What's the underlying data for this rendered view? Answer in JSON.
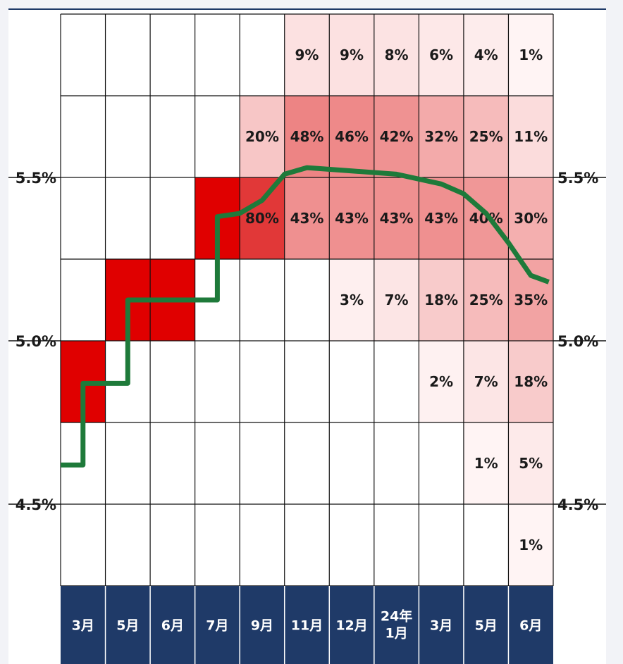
{
  "chart_data": {
    "type": "heatmap",
    "title": "",
    "xlabel": "",
    "ylabel": "",
    "columns": [
      "3月",
      "5月",
      "6月",
      "7月",
      "9月",
      "11月",
      "12月",
      [
        "24年",
        "1月"
      ],
      "3月",
      "5月",
      "6月"
    ],
    "row_ranges": [
      [
        5.75,
        6.0
      ],
      [
        5.5,
        5.75
      ],
      [
        5.25,
        5.5
      ],
      [
        5.0,
        5.25
      ],
      [
        4.75,
        5.0
      ],
      [
        4.5,
        4.75
      ],
      [
        4.25,
        4.5
      ]
    ],
    "ylim": [
      4.25,
      6.0
    ],
    "y_ticks": [
      {
        "value": 5.5,
        "label": "5.5%"
      },
      {
        "value": 5.0,
        "label": "5.0%"
      },
      {
        "value": 4.5,
        "label": "4.5%"
      }
    ],
    "probabilities": [
      [
        0,
        0,
        0,
        0,
        0,
        9,
        9,
        8,
        6,
        4,
        1
      ],
      [
        0,
        0,
        0,
        0,
        20,
        48,
        46,
        42,
        32,
        25,
        11
      ],
      [
        0,
        0,
        0,
        100,
        80,
        43,
        43,
        43,
        43,
        40,
        30
      ],
      [
        0,
        100,
        100,
        0,
        0,
        0,
        3,
        7,
        18,
        25,
        35
      ],
      [
        100,
        0,
        0,
        0,
        0,
        0,
        0,
        0,
        2,
        7,
        18
      ],
      [
        0,
        0,
        0,
        0,
        0,
        0,
        0,
        0,
        0,
        1,
        5
      ],
      [
        0,
        0,
        0,
        0,
        0,
        0,
        0,
        0,
        0,
        0,
        1
      ]
    ],
    "labels": [
      [
        "",
        "",
        "",
        "",
        "",
        "9%",
        "9%",
        "8%",
        "6%",
        "4%",
        "1%"
      ],
      [
        "",
        "",
        "",
        "",
        "20%",
        "48%",
        "46%",
        "42%",
        "32%",
        "25%",
        "11%"
      ],
      [
        "",
        "",
        "",
        "",
        "80%",
        "43%",
        "43%",
        "43%",
        "43%",
        "40%",
        "30%"
      ],
      [
        "",
        "",
        "",
        "",
        "",
        "",
        "3%",
        "7%",
        "18%",
        "25%",
        "35%"
      ],
      [
        "",
        "",
        "",
        "",
        "",
        "",
        "",
        "",
        "2%",
        "7%",
        "18%"
      ],
      [
        "",
        "",
        "",
        "",
        "",
        "",
        "",
        "",
        "",
        "1%",
        "5%"
      ],
      [
        "",
        "",
        "",
        "",
        "",
        "",
        "",
        "",
        "",
        "",
        "1%"
      ]
    ],
    "expected_rate_line": {
      "color": "#1e7a3a",
      "points": [
        [
          0.0,
          4.62
        ],
        [
          0.5,
          4.62
        ],
        [
          0.5,
          4.87
        ],
        [
          1.5,
          4.87
        ],
        [
          1.5,
          5.125
        ],
        [
          3.5,
          5.125
        ],
        [
          3.5,
          5.38
        ],
        [
          4.0,
          5.39
        ],
        [
          4.5,
          5.43
        ],
        [
          5.0,
          5.51
        ],
        [
          5.5,
          5.53
        ],
        [
          6.5,
          5.52
        ],
        [
          7.5,
          5.51
        ],
        [
          8.5,
          5.48
        ],
        [
          9.0,
          5.45
        ],
        [
          9.5,
          5.39
        ],
        [
          10.0,
          5.3
        ],
        [
          10.5,
          5.2
        ],
        [
          10.9,
          5.18
        ]
      ]
    },
    "colors": {
      "realized": "#e00000",
      "high_prob": "#ef7f7f",
      "grid": "#111111",
      "month_bar": "#1f3a68",
      "line": "#1e7a3a"
    },
    "grid": true,
    "legend": "none"
  }
}
